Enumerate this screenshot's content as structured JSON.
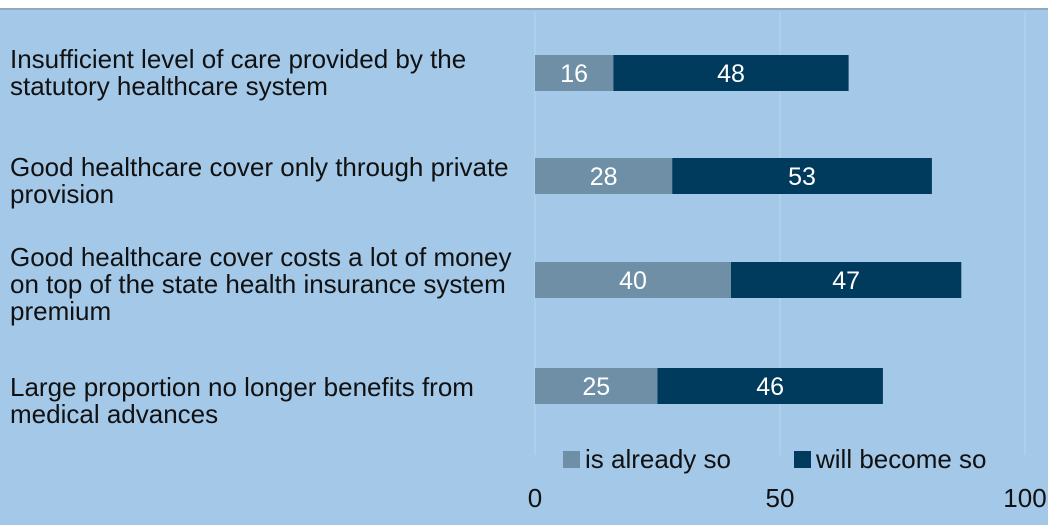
{
  "chart_data": {
    "type": "bar",
    "orientation": "horizontal",
    "stacked": true,
    "categories": [
      "Insufficient level of care provided by the statutory healthcare system",
      "Good healthcare cover only through private provision",
      "Good healthcare cover costs a lot of money on top of the state health insurance system premium",
      "Large proportion no longer benefits from medical advances"
    ],
    "series": [
      {
        "name": "is already so",
        "values": [
          16,
          28,
          40,
          25
        ],
        "color": "#6e8fa6"
      },
      {
        "name": "will become so",
        "values": [
          48,
          53,
          47,
          46
        ],
        "color": "#003a5c"
      }
    ],
    "xlim": [
      0,
      100
    ],
    "xticks": [
      "0",
      "50",
      "100"
    ],
    "title": "",
    "xlabel": "",
    "ylabel": "",
    "grid": false,
    "legend_position": "bottom-right"
  },
  "colors": {
    "background": "#a3c8e8",
    "label_text": "#111111",
    "bar_label_text": "#ffffff"
  }
}
